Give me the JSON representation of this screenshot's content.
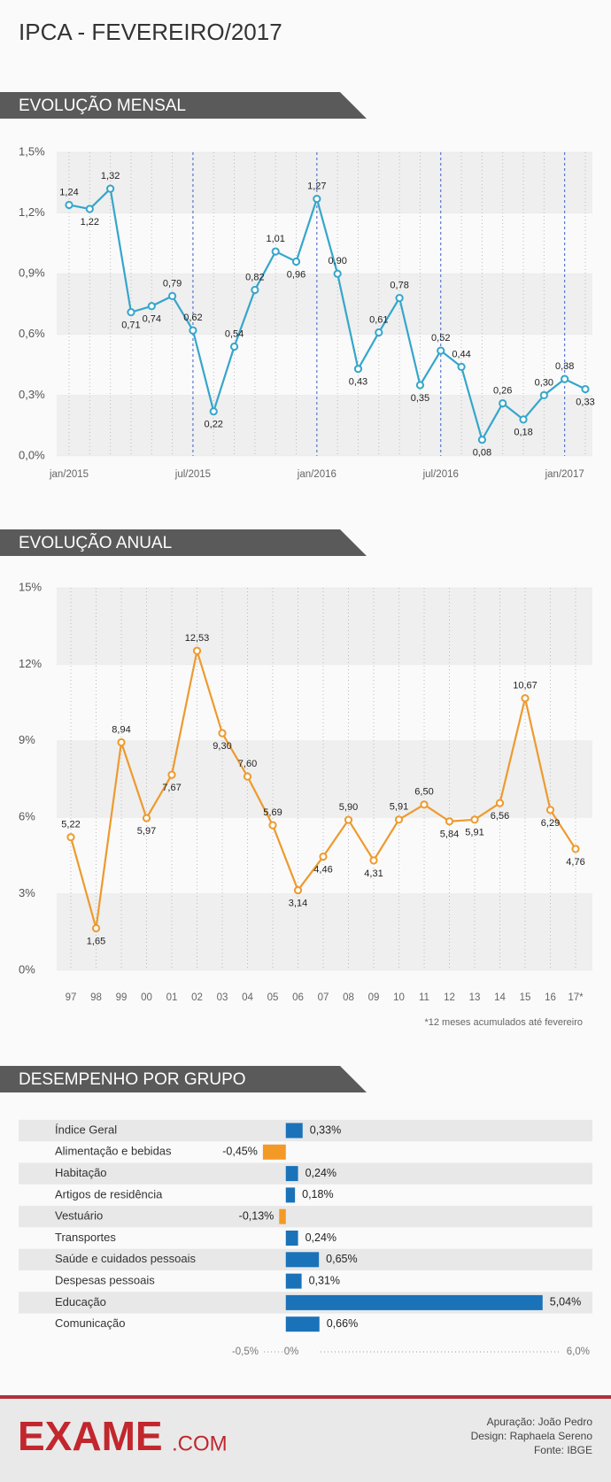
{
  "title": "IPCA - FEVEREIRO/2017",
  "chart_data": [
    {
      "type": "line",
      "section_title": "EVOLUÇÃO MENSAL",
      "categories": [
        "jan/2015",
        null,
        null,
        null,
        null,
        null,
        "jul/2015",
        null,
        null,
        null,
        null,
        null,
        "jan/2016",
        null,
        null,
        null,
        null,
        null,
        "jul/2016",
        null,
        null,
        null,
        null,
        null,
        "jan/2017",
        null
      ],
      "series": [
        {
          "color": "#35a6cb",
          "values": [
            1.24,
            1.22,
            1.32,
            0.71,
            0.74,
            0.79,
            0.62,
            0.22,
            0.54,
            0.82,
            1.01,
            0.96,
            1.27,
            0.9,
            0.43,
            0.61,
            0.78,
            0.35,
            0.52,
            0.44,
            0.08,
            0.26,
            0.18,
            0.3,
            0.38,
            0.33
          ],
          "value_labels": [
            "1,24",
            "1,22",
            "1,32",
            "0,71",
            "0,74",
            "0,79",
            "0,62",
            "0,22",
            "0,54",
            "0,82",
            "1,01",
            "0,96",
            "1,27",
            "0,90",
            "0,43",
            "0,61",
            "0,78",
            "0,35",
            "0,52",
            "0,44",
            "0,08",
            "0,26",
            "0,18",
            "0,30",
            "0,38",
            "0,33"
          ]
        }
      ],
      "ylim": [
        0,
        1.5
      ],
      "yticks": [
        {
          "value": 0,
          "label": "0,0%"
        },
        {
          "value": 0.3,
          "label": "0,3%"
        },
        {
          "value": 0.6,
          "label": "0,6%"
        },
        {
          "value": 0.9,
          "label": "0,9%"
        },
        {
          "value": 1.2,
          "label": "1,2%"
        },
        {
          "value": 1.5,
          "label": "1,5%"
        }
      ]
    },
    {
      "type": "line",
      "section_title": "EVOLUÇÃO ANUAL",
      "categories": [
        "97",
        "98",
        "99",
        "00",
        "01",
        "02",
        "03",
        "04",
        "05",
        "06",
        "07",
        "08",
        "09",
        "10",
        "11",
        "12",
        "13",
        "14",
        "15",
        "16",
        "17*"
      ],
      "series": [
        {
          "color": "#ee9a2e",
          "values": [
            5.22,
            1.65,
            8.94,
            5.97,
            7.67,
            12.53,
            9.3,
            7.6,
            5.69,
            3.14,
            4.46,
            5.9,
            4.31,
            5.91,
            6.5,
            5.84,
            5.91,
            6.56,
            10.67,
            6.29,
            4.76
          ],
          "value_labels": [
            "5,22",
            "1,65",
            "8,94",
            "5,97",
            "7,67",
            "12,53",
            "9,30",
            "7,60",
            "5,69",
            "3,14",
            "4,46",
            "5,90",
            "4,31",
            "5,91",
            "6,50",
            "5,84",
            "5,91",
            "6,56",
            "10,67",
            "6,29",
            "4,76"
          ]
        }
      ],
      "ylim": [
        0,
        15
      ],
      "yticks": [
        {
          "value": 0,
          "label": "0%"
        },
        {
          "value": 3,
          "label": "3%"
        },
        {
          "value": 6,
          "label": "6%"
        },
        {
          "value": 9,
          "label": "9%"
        },
        {
          "value": 12,
          "label": "12%"
        },
        {
          "value": 15,
          "label": "15%"
        }
      ],
      "note": "*12 meses acumulados até fevereiro"
    },
    {
      "type": "bar",
      "orientation": "horizontal",
      "section_title": "DESEMPENHO POR GRUPO",
      "categories": [
        "Índice Geral",
        "Alimentação e bebidas",
        "Habitação",
        "Artigos de residência",
        "Vestuário",
        "Transportes",
        "Saúde e cuidados pessoais",
        "Despesas pessoais",
        "Educação",
        "Comunicação"
      ],
      "values": [
        0.33,
        -0.45,
        0.24,
        0.18,
        -0.13,
        0.24,
        0.65,
        0.31,
        5.04,
        0.66
      ],
      "value_labels": [
        "0,33%",
        "-0,45%",
        "0,24%",
        "0,18%",
        "-0,13%",
        "0,24%",
        "0,65%",
        "0,31%",
        "5,04%",
        "0,66%"
      ],
      "colors": [
        "#1a72b9",
        "#f39a26",
        "#1a72b9",
        "#1a72b9",
        "#f39a26",
        "#1a72b9",
        "#1a72b9",
        "#1a72b9",
        "#1a72b9",
        "#1a72b9"
      ],
      "xlim": [
        -0.5,
        6.0
      ],
      "xticks": [
        {
          "value": -0.5,
          "label": "-0,5%"
        },
        {
          "value": 0,
          "label": "0%"
        },
        {
          "value": 6.0,
          "label": "6,0%"
        }
      ]
    }
  ],
  "footer": {
    "logo": "EXAME",
    "logo_suffix": ".COM",
    "credits": [
      "Apuração: João Pedro",
      "Design: Raphaela Sereno",
      "Fonte: IBGE"
    ]
  }
}
